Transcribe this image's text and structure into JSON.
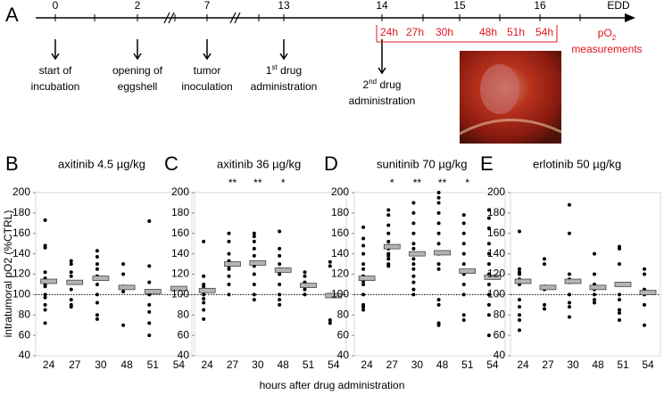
{
  "panel_a": {
    "letter": "A",
    "days": [
      "0",
      "2",
      "7",
      "13",
      "14",
      "15",
      "16",
      "EDD"
    ],
    "events": [
      {
        "lines": [
          [
            {
              "text": "start of"
            }
          ],
          [
            {
              "text": "incubation"
            }
          ]
        ]
      },
      {
        "lines": [
          [
            {
              "text": "opening of"
            }
          ],
          [
            {
              "text": "eggshell"
            }
          ]
        ]
      },
      {
        "lines": [
          [
            {
              "text": "tumor"
            }
          ],
          [
            {
              "text": "inoculation"
            }
          ]
        ]
      },
      {
        "lines": [
          [
            {
              "text": "1"
            },
            {
              "text": "st",
              "sup": true
            },
            {
              "text": " drug"
            }
          ],
          [
            {
              "text": "administration"
            }
          ]
        ]
      },
      {
        "lines": [
          [
            {
              "text": "2"
            },
            {
              "text": "nd",
              "sup": true
            },
            {
              "text": " drug"
            }
          ],
          [
            {
              "text": "administration"
            }
          ]
        ]
      }
    ],
    "hours": [
      "24h",
      "27h",
      "30h",
      "48h",
      "51h",
      "54h"
    ],
    "measure_label": [
      [
        {
          "text": "pO"
        },
        {
          "text": "2",
          "sub": true
        }
      ],
      [
        {
          "text": "measurements"
        }
      ]
    ],
    "color": "#e0141e"
  },
  "x_label": "hours after drug administration",
  "chart_data": [
    {
      "type": "strip",
      "letter": "B",
      "title": "axitinib 4.5 µg/kg",
      "y_label": "intratumoral pO2  (%CTRL)",
      "categories": [
        "24",
        "27",
        "30",
        "48",
        "51",
        "54"
      ],
      "points": [
        [
          173,
          148,
          146,
          122,
          116,
          110,
          108,
          100,
          97,
          90,
          85,
          72
        ],
        [
          133,
          130,
          122,
          118,
          112,
          105,
          95,
          90,
          88
        ],
        [
          143,
          137,
          130,
          125,
          118,
          110,
          100,
          92,
          80,
          76
        ],
        [
          130,
          120,
          108,
          103,
          70
        ],
        [
          172,
          128,
          112,
          100,
          90,
          83,
          72,
          60
        ],
        []
      ],
      "means": [
        113,
        112,
        116,
        107,
        103,
        106
      ],
      "stars": [
        null,
        null,
        null,
        null,
        null,
        null
      ],
      "ref_line": 100,
      "ylim": [
        40,
        200
      ],
      "yticks": [
        40,
        60,
        80,
        100,
        120,
        140,
        160,
        180,
        200
      ]
    },
    {
      "type": "strip",
      "letter": "C",
      "title": "axitinib 36 µg/kg",
      "categories": [
        "24",
        "27",
        "30",
        "48",
        "51",
        "54"
      ],
      "points": [
        [
          152,
          118,
          110,
          108,
          105,
          103,
          100,
          96,
          92,
          85,
          76
        ],
        [
          160,
          152,
          140,
          133,
          130,
          128,
          125,
          118,
          110,
          100
        ],
        [
          160,
          157,
          152,
          145,
          138,
          130,
          128,
          120,
          110,
          100,
          95
        ],
        [
          162,
          145,
          138,
          130,
          125,
          120,
          110,
          100,
          95,
          90
        ],
        [
          122,
          118,
          112,
          108,
          105,
          100
        ],
        [
          132,
          128,
          100,
          75,
          72
        ]
      ],
      "means": [
        104,
        130,
        131,
        124,
        109,
        99
      ],
      "stars": [
        null,
        "**",
        "**",
        "*",
        null,
        null
      ],
      "ref_line": 100,
      "ylim": [
        40,
        200
      ],
      "yticks": [
        40,
        60,
        80,
        100,
        120,
        140,
        160,
        180,
        200
      ]
    },
    {
      "type": "strip",
      "letter": "D",
      "title": "sunitinib 70 µg/kg",
      "categories": [
        "24",
        "27",
        "30",
        "48",
        "51",
        "54"
      ],
      "points": [
        [
          166,
          155,
          148,
          140,
          130,
          125,
          118,
          113,
          110,
          100,
          90,
          88,
          85
        ],
        [
          183,
          178,
          168,
          160,
          152,
          148,
          145,
          140,
          138,
          135,
          130,
          128
        ],
        [
          190,
          180,
          170,
          160,
          150,
          145,
          140,
          135,
          130,
          125,
          118,
          112,
          105,
          100
        ],
        [
          200,
          195,
          190,
          180,
          170,
          160,
          150,
          140,
          130,
          125,
          95,
          90,
          72,
          70
        ],
        [
          178,
          170,
          160,
          150,
          140,
          130,
          120,
          110,
          100,
          80,
          75
        ],
        [
          183,
          175,
          165,
          150,
          140,
          130,
          120,
          110,
          100,
          90,
          80,
          60
        ]
      ],
      "means": [
        116,
        147,
        140,
        141,
        123,
        117
      ],
      "stars": [
        null,
        "*",
        "**",
        "**",
        "*",
        null
      ],
      "ref_line": 100,
      "ylim": [
        40,
        200
      ],
      "yticks": [
        40,
        60,
        80,
        100,
        120,
        140,
        160,
        180,
        200
      ]
    },
    {
      "type": "strip",
      "letter": "E",
      "title": "erlotinib 50 µg/kg",
      "categories": [
        "24",
        "27",
        "30",
        "48",
        "51",
        "54"
      ],
      "points": [
        [
          162,
          125,
          122,
          120,
          115,
          110,
          95,
          88,
          80,
          75,
          65
        ],
        [
          135,
          130,
          108,
          105,
          90,
          86
        ],
        [
          188,
          160,
          120,
          115,
          112,
          100,
          92,
          88,
          78
        ],
        [
          140,
          120,
          110,
          105,
          100,
          95,
          92
        ],
        [
          147,
          145,
          130,
          110,
          100,
          95,
          85,
          82,
          75
        ],
        [
          125,
          120,
          105,
          100,
          90,
          70
        ]
      ],
      "means": [
        113,
        107,
        113,
        107,
        110,
        102
      ],
      "stars": [
        null,
        null,
        null,
        null,
        null,
        null
      ],
      "ref_line": 100,
      "ylim": [
        40,
        200
      ],
      "yticks": [
        40,
        60,
        80,
        100,
        120,
        140,
        160,
        180,
        200
      ]
    }
  ]
}
